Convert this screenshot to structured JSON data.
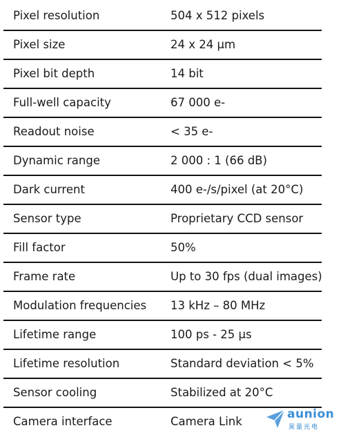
{
  "table": {
    "rows": [
      [
        "Pixel resolution",
        "504 x 512 pixels"
      ],
      [
        "Pixel size",
        "24 x 24 µm"
      ],
      [
        "Pixel bit depth",
        "14 bit"
      ],
      [
        "Full-well capacity",
        "67 000 e-"
      ],
      [
        "Readout noise",
        "< 35 e-"
      ],
      [
        "Dynamic range",
        "2 000 : 1 (66 dB)"
      ],
      [
        "Dark current",
        "400 e-/s/pixel (at 20°C)"
      ],
      [
        "Sensor type",
        "Proprietary CCD sensor"
      ],
      [
        "Fill factor",
        "50%"
      ],
      [
        "Frame rate",
        "Up to 30 fps (dual images)"
      ],
      [
        "Modulation frequencies",
        "13 kHz – 80 MHz"
      ],
      [
        "Lifetime range",
        "100 ps - 25 µs"
      ],
      [
        "Lifetime resolution",
        "Standard deviation < 5%"
      ],
      [
        "Sensor cooling",
        "Stabilized at 20°C"
      ],
      [
        "Camera interface",
        "Camera Link"
      ]
    ]
  },
  "watermark": {
    "brand": "aunion",
    "subtitle": "昊量光电"
  }
}
